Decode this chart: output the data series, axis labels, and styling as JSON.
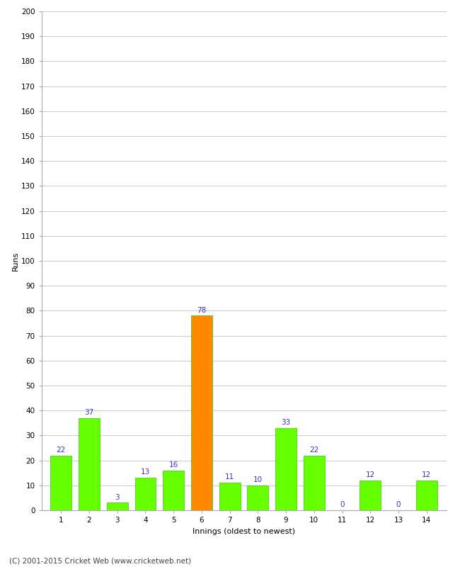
{
  "categories": [
    1,
    2,
    3,
    4,
    5,
    6,
    7,
    8,
    9,
    10,
    11,
    12,
    13,
    14
  ],
  "values": [
    22,
    37,
    3,
    13,
    16,
    78,
    11,
    10,
    33,
    22,
    0,
    12,
    0,
    12
  ],
  "bar_colors": [
    "#66ff00",
    "#66ff00",
    "#66ff00",
    "#66ff00",
    "#66ff00",
    "#ff8800",
    "#66ff00",
    "#66ff00",
    "#66ff00",
    "#66ff00",
    "#66ff00",
    "#66ff00",
    "#66ff00",
    "#66ff00"
  ],
  "xlabel": "Innings (oldest to newest)",
  "ylabel": "Runs",
  "ylim": [
    0,
    200
  ],
  "yticks": [
    0,
    10,
    20,
    30,
    40,
    50,
    60,
    70,
    80,
    90,
    100,
    110,
    120,
    130,
    140,
    150,
    160,
    170,
    180,
    190,
    200
  ],
  "label_color": "#3333cc",
  "label_fontsize": 7.5,
  "axis_label_fontsize": 8,
  "tick_fontsize": 7.5,
  "footer_text": "(C) 2001-2015 Cricket Web (www.cricketweb.net)",
  "footer_fontsize": 7.5,
  "background_color": "#ffffff",
  "grid_color": "#cccccc",
  "bar_edgecolor": "#33cc00",
  "bar_width": 0.75
}
